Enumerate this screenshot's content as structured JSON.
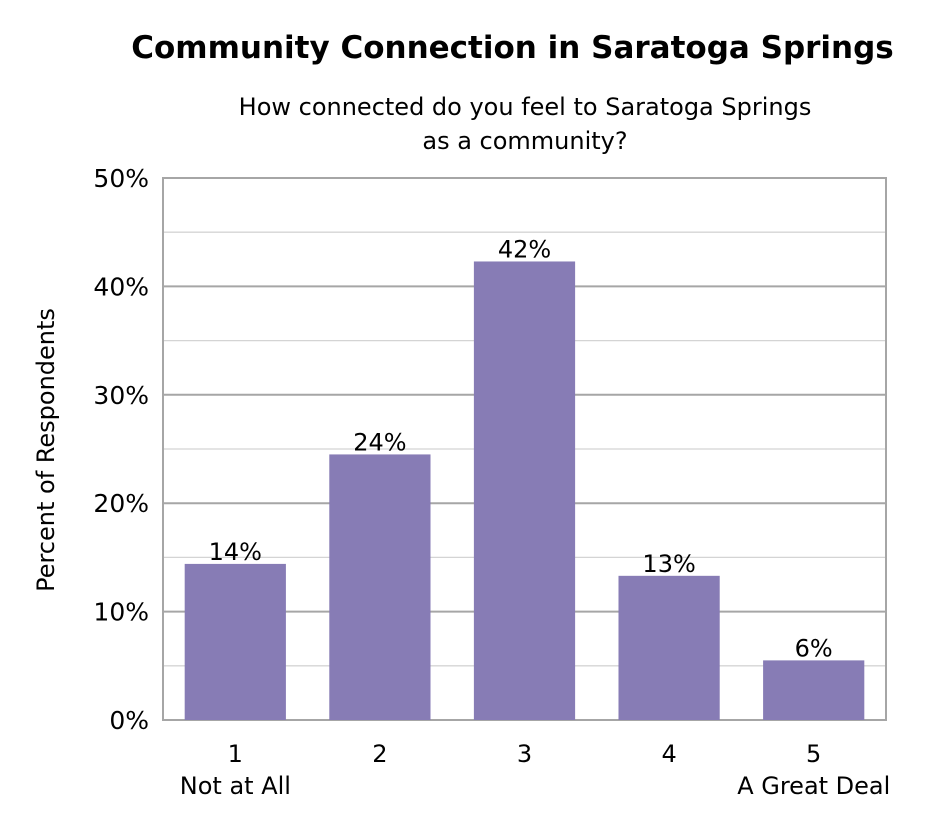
{
  "chart_data": {
    "type": "bar",
    "title": "Community Connection in Saratoga Springs",
    "subtitle_lines": [
      "How connected do you feel to Saratoga Springs",
      "as a community?"
    ],
    "xlabel": "",
    "ylabel": "Percent of Respondents",
    "categories": [
      "1",
      "2",
      "3",
      "4",
      "5"
    ],
    "category_sublabels": {
      "first": "Not at All",
      "last": "A Great Deal"
    },
    "values": [
      14,
      24,
      42,
      13,
      6
    ],
    "data_labels": [
      "14%",
      "24%",
      "42%",
      "13%",
      "6%"
    ],
    "plotted_values": [
      14.4,
      24.5,
      42.3,
      13.3,
      5.5
    ],
    "ylim": [
      0,
      50
    ],
    "yticks": [
      0,
      10,
      20,
      30,
      40,
      50
    ],
    "ytick_labels": [
      "0%",
      "10%",
      "20%",
      "30%",
      "40%",
      "50%"
    ],
    "minor_gridlines_every": 5,
    "grid": true,
    "legend": "none",
    "bar_color": "#877cb5",
    "major_grid_color": "#a6a6a6",
    "minor_grid_color": "#d4d4d4"
  }
}
